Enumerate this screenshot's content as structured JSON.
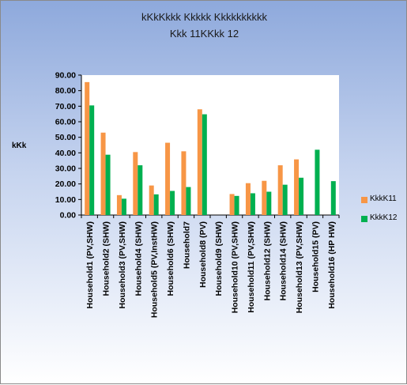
{
  "chart_data": {
    "type": "bar",
    "title": "kKkKkkk Kkkkk Kkkkkkkkkk",
    "subtitle": "Kkk 11KKkk 12",
    "ylabel": "kKk",
    "xlabel": "",
    "ylim": [
      0,
      90
    ],
    "yticks": [
      "0.00",
      "10.00",
      "20.00",
      "30.00",
      "40.00",
      "50.00",
      "60.00",
      "70.00",
      "80.00",
      "90.00"
    ],
    "grid": false,
    "legend_position": "right",
    "categories": [
      "Household1 (PV,SHW)",
      "Household2 (SHW)",
      "Household3 (PV,SHW)",
      "Household4 (SHW)",
      "Household5 (PV,InstHW)",
      "Household6 (SHW)",
      "Household7",
      "Household8 (PV)",
      "Household9 (SHW)",
      "Household10 (PV,SHW)",
      "Household11 (PV,SHW)",
      "Household12 (SHW)",
      "Household14 (SHW)",
      "Household13 (PV,SHW)",
      "Household15 (PV)",
      "Household16 (HP HW)"
    ],
    "series": [
      {
        "name": "KkkK11",
        "color": "#f79646",
        "values": [
          85.5,
          53.0,
          12.8,
          40.5,
          19.0,
          46.5,
          41.0,
          68.0,
          0,
          13.5,
          20.5,
          22.0,
          32.0,
          35.8,
          0,
          0
        ]
      },
      {
        "name": "KkkK12",
        "color": "#00b050",
        "values": [
          70.5,
          38.8,
          10.5,
          32.0,
          13.3,
          15.5,
          18.0,
          64.8,
          0,
          12.3,
          14.0,
          15.0,
          19.5,
          24.0,
          42.0,
          21.8
        ]
      }
    ]
  }
}
